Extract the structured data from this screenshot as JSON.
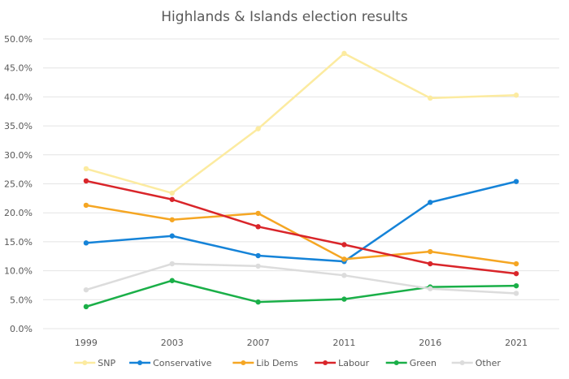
{
  "chart_data": {
    "type": "line",
    "title": "Highlands & Islands election results",
    "xlabel": "",
    "ylabel": "",
    "categories": [
      "1999",
      "2003",
      "2007",
      "2011",
      "2016",
      "2021"
    ],
    "ylim": [
      0,
      50
    ],
    "yticks": [
      "0.0%",
      "5.0%",
      "10.0%",
      "15.0%",
      "20.0%",
      "25.0%",
      "30.0%",
      "35.0%",
      "40.0%",
      "45.0%",
      "50.0%"
    ],
    "ytick_values": [
      0,
      5,
      10,
      15,
      20,
      25,
      30,
      35,
      40,
      45,
      50
    ],
    "grid": true,
    "legend_position": "bottom",
    "series": [
      {
        "name": "SNP",
        "color": "#FCEBA0",
        "values": [
          27.6,
          23.4,
          34.5,
          47.5,
          39.8,
          40.3
        ]
      },
      {
        "name": "Conservative",
        "color": "#1583D8",
        "values": [
          14.8,
          16.0,
          12.6,
          11.6,
          21.8,
          25.4
        ]
      },
      {
        "name": "Lib Dems",
        "color": "#F5A623",
        "values": [
          21.3,
          18.8,
          19.9,
          12.0,
          13.3,
          11.2
        ]
      },
      {
        "name": "Labour",
        "color": "#D9252A",
        "values": [
          25.5,
          22.3,
          17.6,
          14.5,
          11.2,
          9.5
        ]
      },
      {
        "name": "Green",
        "color": "#1AAF48",
        "values": [
          3.8,
          8.3,
          4.6,
          5.1,
          7.2,
          7.4
        ]
      },
      {
        "name": "Other",
        "color": "#DCDCDC",
        "values": [
          6.7,
          11.2,
          10.8,
          9.2,
          6.9,
          6.1
        ]
      }
    ]
  }
}
